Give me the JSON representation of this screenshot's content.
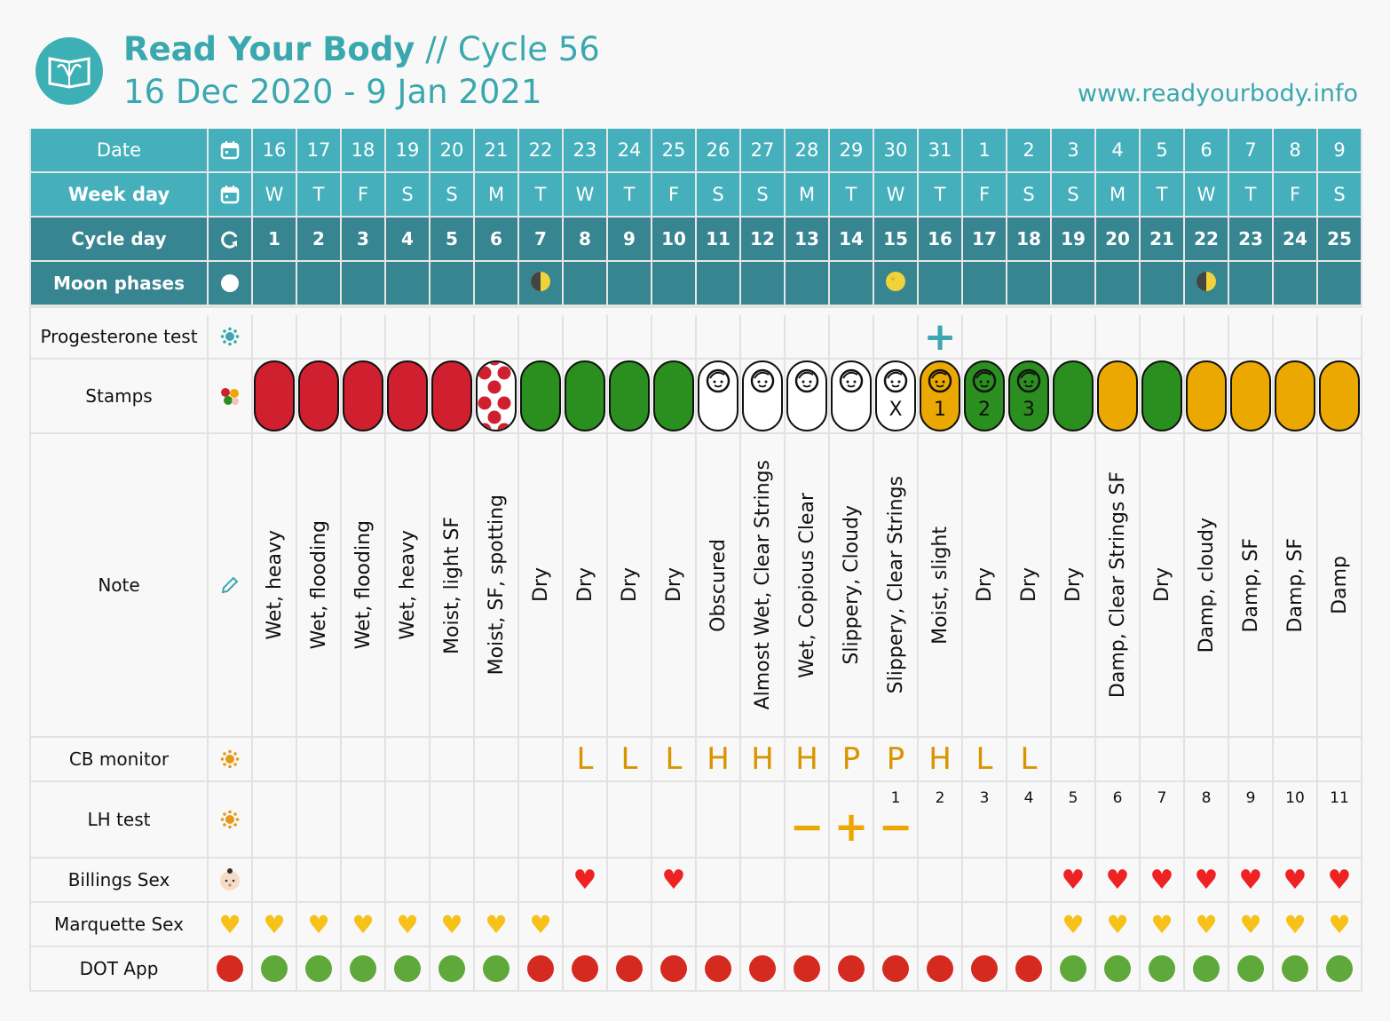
{
  "header": {
    "title_bold": "Read Your Body",
    "title_rest": " // Cycle 56",
    "date_range": "16 Dec 2020 - 9 Jan 2021",
    "url": "www.readyourbody.info",
    "logo_icon": "book-uterus-logo"
  },
  "colors": {
    "teal": "#45b0bb",
    "teal_dark": "#378590",
    "red": "#d0202f",
    "green": "#2a8f1e",
    "yellow": "#eba800",
    "white": "#ffffff"
  },
  "rows": {
    "date": {
      "label": "Date",
      "icon": "calendar-icon",
      "values": [
        "16",
        "17",
        "18",
        "19",
        "20",
        "21",
        "22",
        "23",
        "24",
        "25",
        "26",
        "27",
        "28",
        "29",
        "30",
        "31",
        "1",
        "2",
        "3",
        "4",
        "5",
        "6",
        "7",
        "8",
        "9"
      ]
    },
    "weekday": {
      "label": "Week day",
      "icon": "calendar-icon",
      "values": [
        "W",
        "T",
        "F",
        "S",
        "S",
        "M",
        "T",
        "W",
        "T",
        "F",
        "S",
        "S",
        "M",
        "T",
        "W",
        "T",
        "F",
        "S",
        "S",
        "M",
        "T",
        "W",
        "T",
        "F",
        "S"
      ]
    },
    "cycle_day": {
      "label": "Cycle day",
      "icon": "cycle-icon",
      "values": [
        "1",
        "2",
        "3",
        "4",
        "5",
        "6",
        "7",
        "8",
        "9",
        "10",
        "11",
        "12",
        "13",
        "14",
        "15",
        "16",
        "17",
        "18",
        "19",
        "20",
        "21",
        "22",
        "23",
        "24",
        "25"
      ]
    },
    "moon": {
      "label": "Moon phases",
      "icon": "moon-icon",
      "values": [
        "",
        "",
        "",
        "",
        "",
        "",
        "first-quarter",
        "",
        "",
        "",
        "",
        "",
        "",
        "",
        "full",
        "",
        "",
        "",
        "",
        "",
        "",
        "last-quarter",
        "",
        "",
        ""
      ]
    },
    "progesterone": {
      "label": "Progesterone test",
      "icon": "sun-icon",
      "values": [
        "",
        "",
        "",
        "",
        "",
        "",
        "",
        "",
        "",
        "",
        "",
        "",
        "",
        "",
        "",
        "+",
        "",
        "",
        "",
        "",
        "",
        "",
        "",
        "",
        ""
      ]
    },
    "stamps": {
      "label": "Stamps",
      "icon": "stamps-icon",
      "values": [
        {
          "color": "red"
        },
        {
          "color": "red"
        },
        {
          "color": "red"
        },
        {
          "color": "red"
        },
        {
          "color": "red"
        },
        {
          "color": "red-dots"
        },
        {
          "color": "green"
        },
        {
          "color": "green"
        },
        {
          "color": "green"
        },
        {
          "color": "green"
        },
        {
          "color": "white",
          "baby": true
        },
        {
          "color": "white",
          "baby": true
        },
        {
          "color": "white",
          "baby": true
        },
        {
          "color": "white",
          "baby": true
        },
        {
          "color": "white",
          "baby": true,
          "text": "X"
        },
        {
          "color": "yellow",
          "baby": true,
          "text": "1"
        },
        {
          "color": "green",
          "baby": true,
          "text": "2"
        },
        {
          "color": "green",
          "baby": true,
          "text": "3"
        },
        {
          "color": "green"
        },
        {
          "color": "yellow"
        },
        {
          "color": "green"
        },
        {
          "color": "yellow"
        },
        {
          "color": "yellow"
        },
        {
          "color": "yellow"
        },
        {
          "color": "yellow"
        }
      ]
    },
    "note": {
      "label": "Note",
      "icon": "pencil-icon",
      "values": [
        "Wet, heavy",
        "Wet, flooding",
        "Wet, flooding",
        "Wet, heavy",
        "Moist, light SF",
        "Moist, SF, spotting",
        "Dry",
        "Dry",
        "Dry",
        "Dry",
        "Obscured",
        "Almost Wet, Clear Strings",
        "Wet, Copious Clear",
        "Slippery, Cloudy",
        "Slippery, Clear Strings",
        "Moist, slight",
        "Dry",
        "Dry",
        "Dry",
        "Damp, Clear Strings SF",
        "Dry",
        "Damp, cloudy",
        "Damp, SF",
        "Damp, SF",
        "Damp"
      ]
    },
    "cb_monitor": {
      "label": "CB monitor",
      "icon": "sun-icon",
      "values": [
        "",
        "",
        "",
        "",
        "",
        "",
        "",
        "L",
        "L",
        "L",
        "H",
        "H",
        "H",
        "P",
        "P",
        "H",
        "L",
        "L",
        "",
        "",
        "",
        "",
        "",
        "",
        ""
      ]
    },
    "lh_test": {
      "label": "LH test",
      "icon": "sun-icon",
      "numbers": [
        "",
        "",
        "",
        "",
        "",
        "",
        "",
        "",
        "",
        "",
        "",
        "",
        "",
        "",
        "1",
        "2",
        "3",
        "4",
        "5",
        "6",
        "7",
        "8",
        "9",
        "10",
        "11"
      ],
      "marks": [
        "",
        "",
        "",
        "",
        "",
        "",
        "",
        "",
        "",
        "",
        "",
        "",
        "−",
        "+",
        "−",
        "",
        "",
        "",
        "",
        "",
        "",
        "",
        "",
        "",
        ""
      ]
    },
    "billings": {
      "label": "Billings Sex",
      "icon": "baby-icon",
      "values": [
        0,
        0,
        0,
        0,
        0,
        0,
        0,
        1,
        0,
        1,
        0,
        0,
        0,
        0,
        0,
        0,
        0,
        0,
        1,
        1,
        1,
        1,
        1,
        1,
        1
      ]
    },
    "marquette": {
      "label": "Marquette Sex",
      "icon": "yellow-heart-icon",
      "values": [
        1,
        1,
        1,
        1,
        1,
        1,
        1,
        0,
        0,
        0,
        0,
        0,
        0,
        0,
        0,
        0,
        0,
        0,
        1,
        1,
        1,
        1,
        1,
        1,
        1
      ]
    },
    "dot": {
      "label": "DOT App",
      "icon": "red-circle-icon",
      "values": [
        "green",
        "green",
        "green",
        "green",
        "green",
        "green",
        "red",
        "red",
        "red",
        "red",
        "red",
        "red",
        "red",
        "red",
        "red",
        "red",
        "red",
        "red",
        "green",
        "green",
        "green",
        "green",
        "green",
        "green",
        "green"
      ]
    }
  }
}
